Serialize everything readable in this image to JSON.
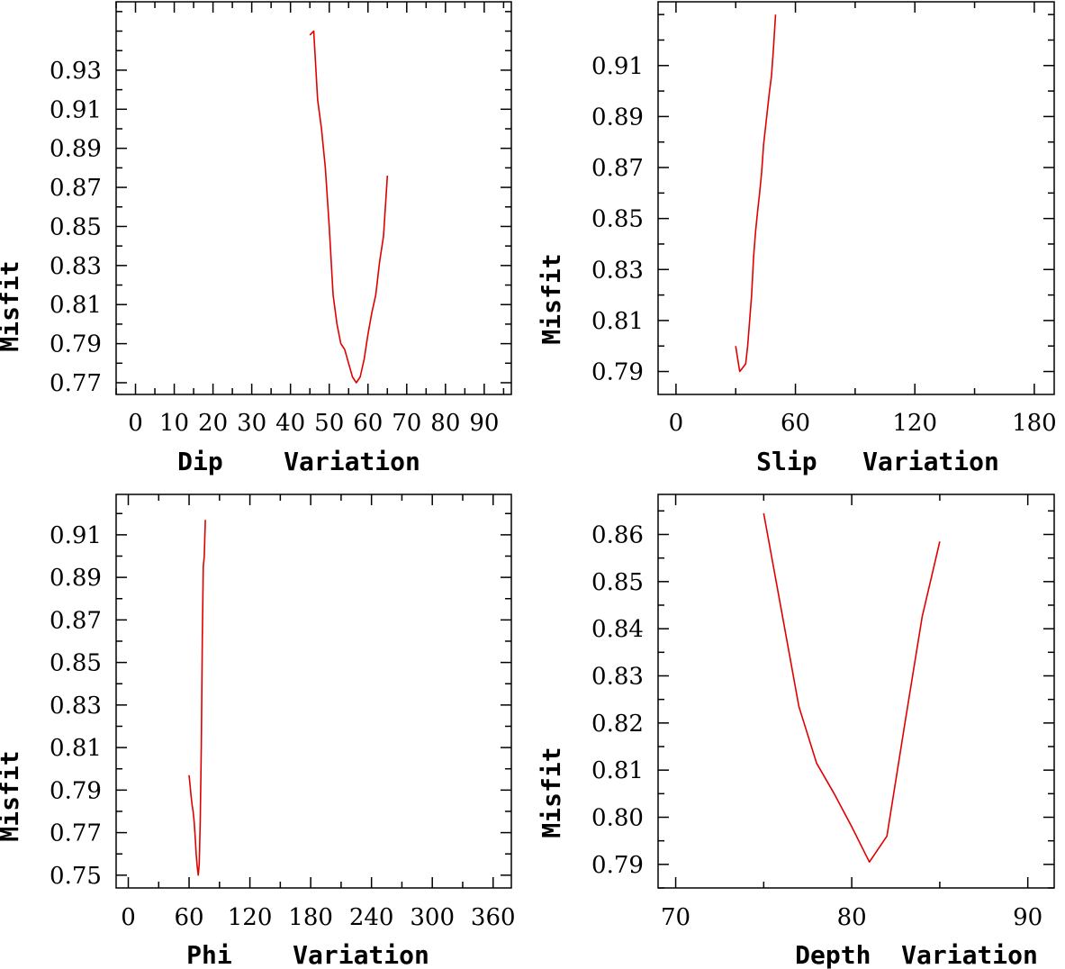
{
  "chart_data": [
    {
      "type": "line",
      "xlabel": "Dip    Variation",
      "ylabel": "Misfit",
      "xlim": [
        -5,
        97
      ],
      "ylim": [
        0.764,
        0.965
      ],
      "xticks": [
        0,
        10,
        20,
        30,
        40,
        50,
        60,
        70,
        80,
        90
      ],
      "xtick_labels": [
        "0",
        "10",
        "20",
        "30",
        "40",
        "50",
        "60",
        "70",
        "80",
        "90"
      ],
      "yticks": [
        0.77,
        0.79,
        0.81,
        0.83,
        0.85,
        0.87,
        0.89,
        0.91,
        0.93
      ],
      "ytick_labels": [
        "0.77",
        "0.79",
        "0.81",
        "0.83",
        "0.85",
        "0.87",
        "0.89",
        "0.91",
        "0.93"
      ],
      "series": [
        {
          "name": "misfit",
          "color": "#e00000",
          "x": [
            45,
            46,
            47,
            48,
            49,
            50,
            51,
            52,
            53,
            54,
            55,
            56,
            57,
            58,
            59,
            60,
            61,
            62,
            63,
            64,
            65
          ],
          "y": [
            0.948,
            0.95,
            0.915,
            0.9,
            0.88,
            0.85,
            0.815,
            0.8,
            0.79,
            0.787,
            0.78,
            0.773,
            0.77,
            0.773,
            0.782,
            0.795,
            0.806,
            0.815,
            0.832,
            0.845,
            0.876
          ]
        }
      ]
    },
    {
      "type": "line",
      "xlabel": "Slip   Variation",
      "ylabel": "Misfit",
      "xlim": [
        -9,
        190
      ],
      "ylim": [
        0.781,
        0.935
      ],
      "xticks": [
        0,
        60,
        120,
        180
      ],
      "xtick_labels": [
        "0",
        "60",
        "120",
        "180"
      ],
      "yticks": [
        0.79,
        0.81,
        0.83,
        0.85,
        0.87,
        0.89,
        0.91
      ],
      "ytick_labels": [
        "0.79",
        "0.81",
        "0.83",
        "0.85",
        "0.87",
        "0.89",
        "0.91"
      ],
      "series": [
        {
          "name": "misfit",
          "color": "#e00000",
          "x": [
            30,
            31,
            32,
            33,
            34,
            35,
            36,
            37,
            38,
            39,
            40,
            41,
            42,
            43,
            44,
            45,
            46,
            47,
            48,
            49,
            50
          ],
          "y": [
            0.8,
            0.795,
            0.79,
            0.791,
            0.792,
            0.793,
            0.8,
            0.81,
            0.82,
            0.835,
            0.845,
            0.853,
            0.86,
            0.868,
            0.879,
            0.886,
            0.893,
            0.9,
            0.906,
            0.917,
            0.93
          ]
        }
      ]
    },
    {
      "type": "line",
      "xlabel": "Phi    Variation",
      "ylabel": "Misfit",
      "xlim": [
        -12,
        378
      ],
      "ylim": [
        0.744,
        0.929
      ],
      "xticks": [
        0,
        60,
        120,
        180,
        240,
        300,
        360
      ],
      "xtick_labels": [
        "0",
        "60",
        "120",
        "180",
        "240",
        "300",
        "360"
      ],
      "yticks": [
        0.75,
        0.77,
        0.79,
        0.81,
        0.83,
        0.85,
        0.87,
        0.89,
        0.91
      ],
      "ytick_labels": [
        "0.75",
        "0.77",
        "0.79",
        "0.81",
        "0.83",
        "0.85",
        "0.87",
        "0.89",
        "0.91"
      ],
      "series": [
        {
          "name": "misfit",
          "color": "#e00000",
          "x": [
            60,
            61,
            62,
            63,
            64,
            65,
            66,
            67,
            68,
            69,
            70,
            71,
            72,
            73,
            74,
            75,
            76
          ],
          "y": [
            0.797,
            0.792,
            0.787,
            0.783,
            0.78,
            0.775,
            0.768,
            0.76,
            0.754,
            0.75,
            0.755,
            0.775,
            0.81,
            0.86,
            0.895,
            0.9,
            0.917
          ]
        }
      ]
    },
    {
      "type": "line",
      "xlabel": "Depth  Variation",
      "ylabel": "Misfit",
      "xlim": [
        69,
        91.5
      ],
      "ylim": [
        0.785,
        0.8685
      ],
      "xticks": [
        70,
        80,
        90
      ],
      "xtick_labels": [
        "70",
        "80",
        "90"
      ],
      "yticks": [
        0.79,
        0.8,
        0.81,
        0.82,
        0.83,
        0.84,
        0.85,
        0.86
      ],
      "ytick_labels": [
        "0.79",
        "0.80",
        "0.81",
        "0.82",
        "0.83",
        "0.84",
        "0.85",
        "0.86"
      ],
      "series": [
        {
          "name": "misfit",
          "color": "#e00000",
          "x": [
            75,
            76,
            77,
            78,
            79,
            80,
            81,
            82,
            83,
            84,
            85
          ],
          "y": [
            0.8645,
            0.844,
            0.8235,
            0.8115,
            0.805,
            0.798,
            0.7905,
            0.796,
            0.8195,
            0.8425,
            0.8585
          ]
        }
      ]
    }
  ]
}
